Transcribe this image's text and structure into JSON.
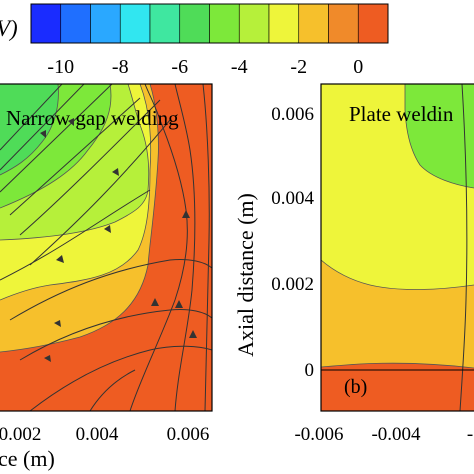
{
  "colorbar": {
    "label_fragment": "V)",
    "levels": [
      -11,
      -10,
      -9,
      -8,
      -7,
      -6,
      -5,
      -4,
      -3,
      -2,
      -1,
      0,
      1
    ],
    "colors": [
      "#1a2cff",
      "#1f6fff",
      "#2aa8ff",
      "#31e6f0",
      "#3fe7a0",
      "#4fdc58",
      "#7de83a",
      "#b6f03a",
      "#eef53a",
      "#f6c02c",
      "#f08a2a",
      "#ee5c22",
      "#ff1f1f"
    ],
    "tick_labels": [
      "-10",
      "-8",
      "-6",
      "-4",
      "-2",
      "0"
    ]
  },
  "chart_data": [
    {
      "type": "heatmap",
      "title": "Narrow gap welding",
      "xlabel": "ce (m)",
      "ylabel": "",
      "x_tick_labels": [
        "0.002",
        "0.004",
        "0.006"
      ],
      "y_tick_labels": [],
      "zones": [
        "dark-green",
        "green",
        "yellow-green",
        "yellow",
        "light-orange",
        "orange-red"
      ]
    },
    {
      "type": "heatmap",
      "title": "Plate weldin",
      "panel_label": "(b)",
      "xlabel": "",
      "ylabel": "Axial distance (m)",
      "x_tick_labels": [
        "-0.006",
        "-0.004",
        "-"
      ],
      "y_tick_labels": [
        "0.006",
        "0.004",
        "0.002",
        "0"
      ],
      "zones": [
        "green",
        "yellow",
        "light-orange",
        "orange-red"
      ]
    }
  ]
}
